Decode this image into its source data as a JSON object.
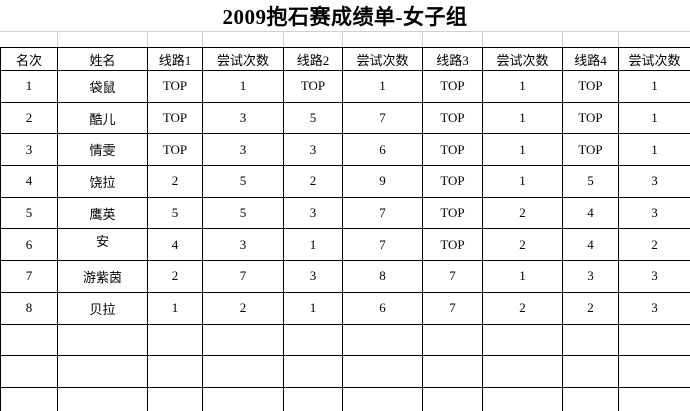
{
  "title": "2009抱石赛成绩单-女子组",
  "table": {
    "headers": [
      "名次",
      "姓名",
      "线路1",
      "尝试次数",
      "线路2",
      "尝试次数",
      "线路3",
      "尝试次数",
      "线路4",
      "尝试次数"
    ],
    "rows": [
      [
        "1",
        "袋鼠",
        "TOP",
        "1",
        "TOP",
        "1",
        "TOP",
        "1",
        "TOP",
        "1"
      ],
      [
        "2",
        "酷儿",
        "TOP",
        "3",
        "5",
        "7",
        "TOP",
        "1",
        "TOP",
        "1"
      ],
      [
        "3",
        "情雯",
        "TOP",
        "3",
        "3",
        "6",
        "TOP",
        "1",
        "TOP",
        "1"
      ],
      [
        "4",
        "饶拉",
        "2",
        "5",
        "2",
        "9",
        "TOP",
        "1",
        "5",
        "3"
      ],
      [
        "5",
        "鹰英",
        "5",
        "5",
        "3",
        "7",
        "TOP",
        "2",
        "4",
        "3"
      ],
      [
        "6",
        "安",
        "4",
        "3",
        "1",
        "7",
        "TOP",
        "2",
        "4",
        "2"
      ],
      [
        "7",
        "游紫茵",
        "2",
        "7",
        "3",
        "8",
        "7",
        "1",
        "3",
        "3"
      ],
      [
        "8",
        "贝拉",
        "1",
        "2",
        "1",
        "6",
        "7",
        "2",
        "2",
        "3"
      ]
    ],
    "empty_row_count": 3
  },
  "colors": {
    "text": "#000000",
    "table_border": "#000000",
    "faint_gridline": "#d0d0d0",
    "background": "#ffffff"
  }
}
